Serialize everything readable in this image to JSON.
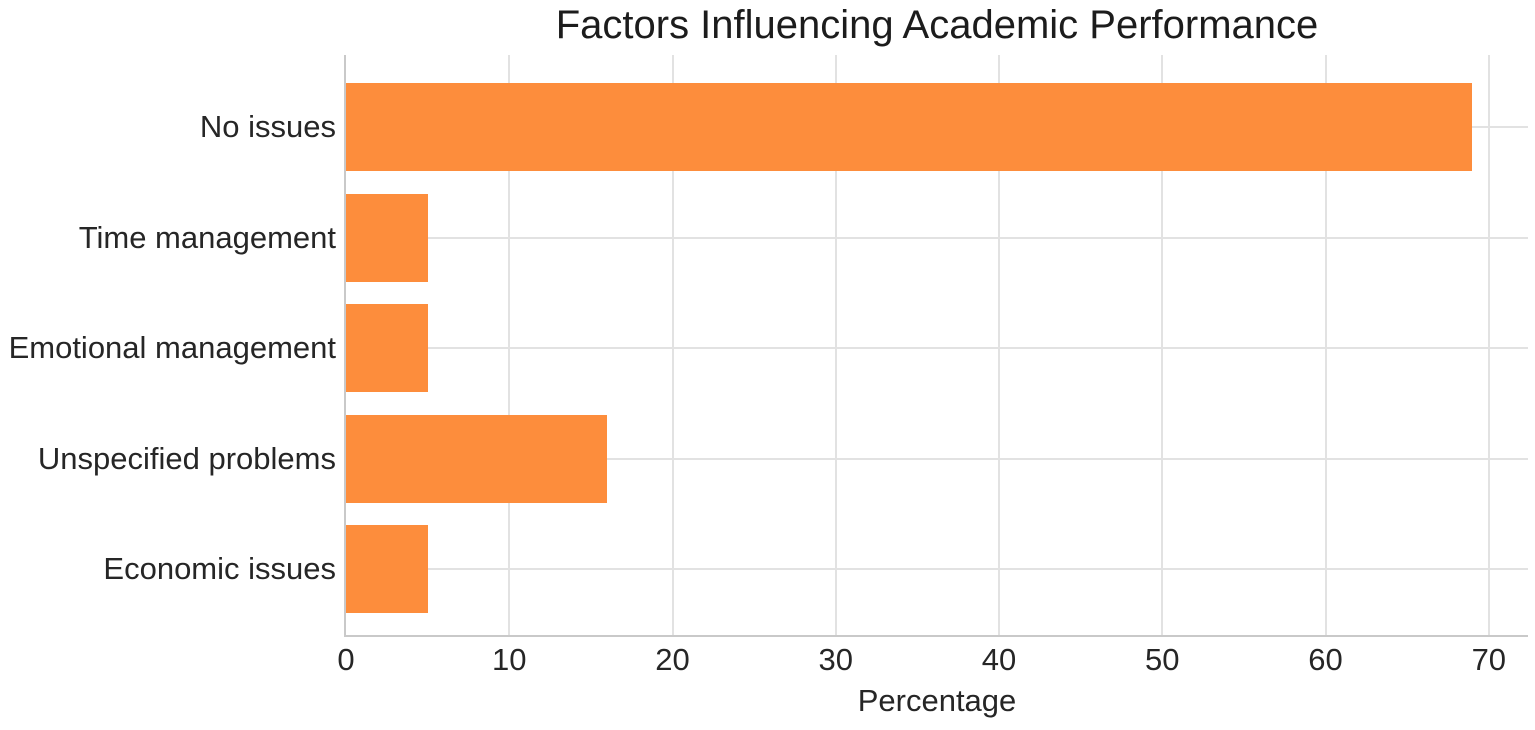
{
  "chart_data": {
    "type": "bar",
    "orientation": "horizontal",
    "title": "Factors Influencing Academic Performance",
    "categories": [
      "No issues",
      "Time management",
      "Emotional management",
      "Unspecified problems",
      "Economic issues"
    ],
    "values": [
      69,
      5,
      5,
      16,
      5
    ],
    "xlabel": "Percentage",
    "ylabel": "",
    "xlim": [
      0,
      72.4
    ],
    "xticks": [
      0,
      10,
      20,
      30,
      40,
      50,
      60,
      70
    ],
    "grid": true,
    "legend": "none",
    "colors": {
      "bar": "#fd8d3c",
      "gridline": "#e2e2e2",
      "spine": "#c9c9c9",
      "text": "#262626",
      "background": "#ffffff"
    }
  }
}
